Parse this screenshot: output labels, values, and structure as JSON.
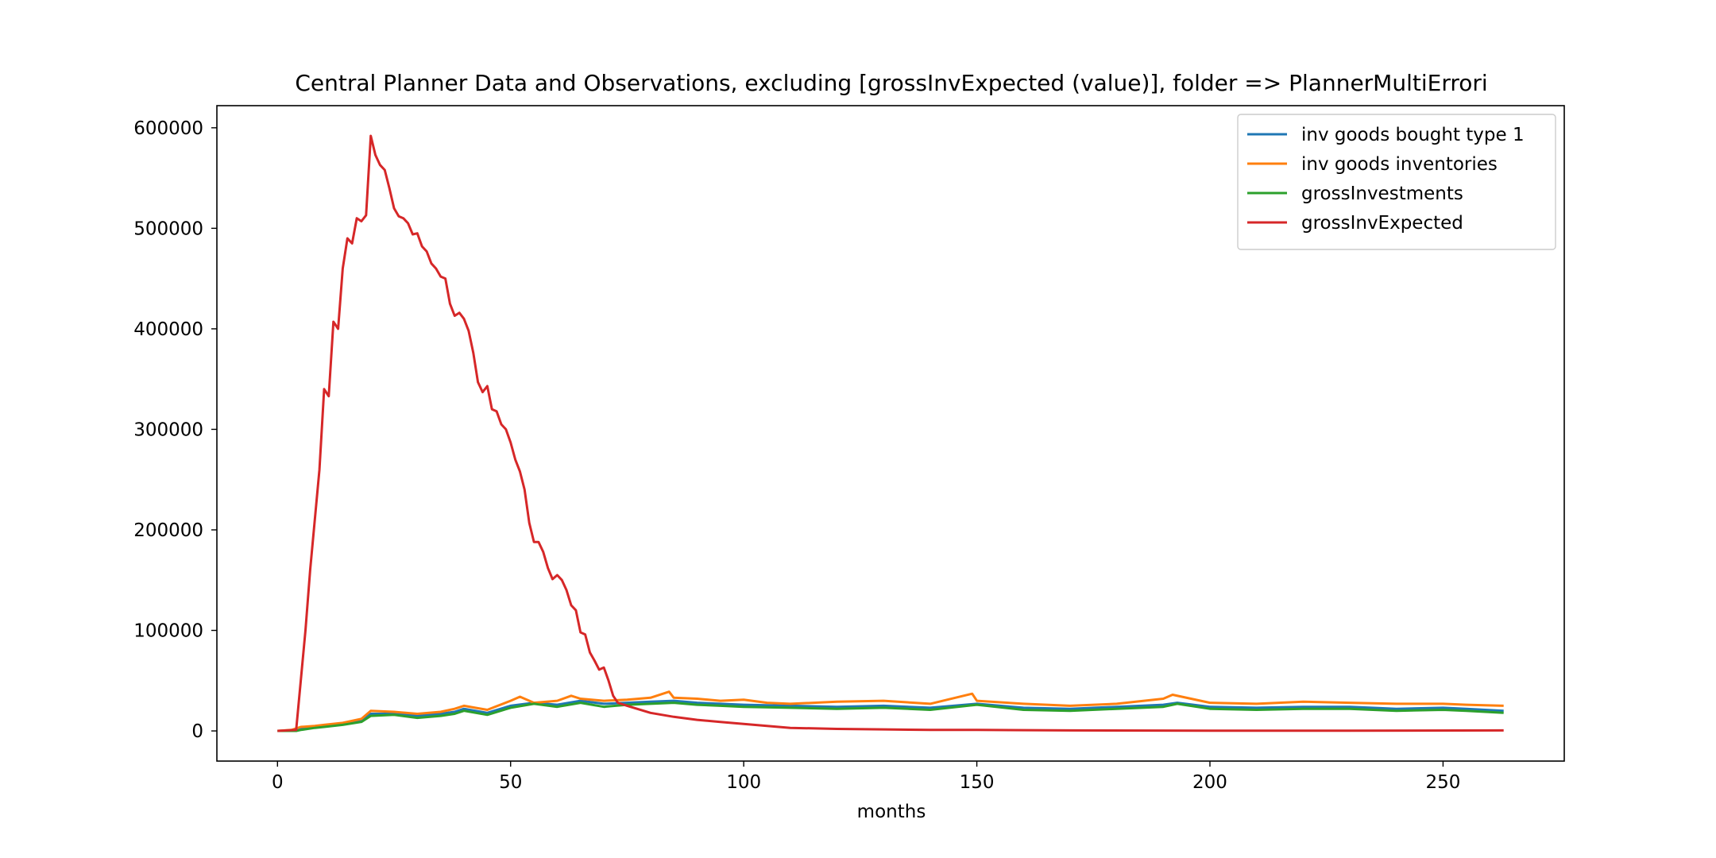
{
  "chart_data": {
    "type": "line",
    "title": "Central Planner Data and Observations, excluding [grossInvExpected (value)], folder => PlannerMultiErrori",
    "xlabel": "months",
    "ylabel": "",
    "xlim": [
      -13,
      276
    ],
    "ylim": [
      -30000,
      622000
    ],
    "xticks": [
      0,
      50,
      100,
      150,
      200,
      250
    ],
    "yticks": [
      0,
      100000,
      200000,
      300000,
      400000,
      500000,
      600000
    ],
    "legend_position": "top-right",
    "grid": false,
    "series": [
      {
        "name": "inv goods bought type 1",
        "color": "#1f77b4",
        "points": [
          [
            0,
            0
          ],
          [
            4,
            0
          ],
          [
            5,
            2000
          ],
          [
            8,
            4000
          ],
          [
            10,
            5000
          ],
          [
            14,
            7000
          ],
          [
            18,
            10000
          ],
          [
            20,
            17000
          ],
          [
            25,
            17000
          ],
          [
            30,
            15000
          ],
          [
            35,
            17000
          ],
          [
            38,
            19000
          ],
          [
            40,
            22000
          ],
          [
            45,
            18000
          ],
          [
            50,
            25000
          ],
          [
            55,
            28000
          ],
          [
            60,
            26000
          ],
          [
            65,
            30000
          ],
          [
            70,
            27000
          ],
          [
            75,
            28000
          ],
          [
            80,
            29000
          ],
          [
            85,
            30000
          ],
          [
            90,
            28000
          ],
          [
            95,
            27000
          ],
          [
            100,
            26000
          ],
          [
            110,
            25000
          ],
          [
            120,
            24000
          ],
          [
            130,
            25000
          ],
          [
            140,
            23000
          ],
          [
            150,
            27000
          ],
          [
            160,
            23000
          ],
          [
            170,
            22000
          ],
          [
            180,
            24000
          ],
          [
            190,
            26000
          ],
          [
            193,
            28000
          ],
          [
            200,
            24000
          ],
          [
            210,
            23000
          ],
          [
            220,
            24000
          ],
          [
            230,
            24000
          ],
          [
            240,
            22000
          ],
          [
            250,
            23000
          ],
          [
            255,
            22000
          ],
          [
            263,
            20000
          ]
        ]
      },
      {
        "name": "inv goods inventories",
        "color": "#ff7f0e",
        "points": [
          [
            0,
            0
          ],
          [
            3,
            1000
          ],
          [
            5,
            4000
          ],
          [
            8,
            5000
          ],
          [
            10,
            6000
          ],
          [
            14,
            8000
          ],
          [
            18,
            12000
          ],
          [
            20,
            20000
          ],
          [
            25,
            19000
          ],
          [
            30,
            17000
          ],
          [
            35,
            19000
          ],
          [
            38,
            22000
          ],
          [
            40,
            25000
          ],
          [
            45,
            21000
          ],
          [
            50,
            30000
          ],
          [
            52,
            34000
          ],
          [
            55,
            28000
          ],
          [
            60,
            30000
          ],
          [
            63,
            35000
          ],
          [
            65,
            32000
          ],
          [
            70,
            30000
          ],
          [
            75,
            31000
          ],
          [
            80,
            33000
          ],
          [
            84,
            39000
          ],
          [
            85,
            33000
          ],
          [
            90,
            32000
          ],
          [
            95,
            30000
          ],
          [
            100,
            31000
          ],
          [
            105,
            28000
          ],
          [
            110,
            27000
          ],
          [
            120,
            29000
          ],
          [
            130,
            30000
          ],
          [
            140,
            27000
          ],
          [
            149,
            37000
          ],
          [
            150,
            30000
          ],
          [
            160,
            27000
          ],
          [
            170,
            25000
          ],
          [
            180,
            27000
          ],
          [
            190,
            32000
          ],
          [
            192,
            36000
          ],
          [
            200,
            28000
          ],
          [
            210,
            27000
          ],
          [
            220,
            29000
          ],
          [
            230,
            28000
          ],
          [
            240,
            27000
          ],
          [
            250,
            27000
          ],
          [
            255,
            26000
          ],
          [
            263,
            25000
          ]
        ]
      },
      {
        "name": "grossInvestments",
        "color": "#2ca02c",
        "points": [
          [
            0,
            0
          ],
          [
            4,
            0
          ],
          [
            5,
            1000
          ],
          [
            8,
            3000
          ],
          [
            10,
            4000
          ],
          [
            14,
            6000
          ],
          [
            18,
            9000
          ],
          [
            20,
            15000
          ],
          [
            25,
            16000
          ],
          [
            30,
            13000
          ],
          [
            35,
            15000
          ],
          [
            38,
            17000
          ],
          [
            40,
            20000
          ],
          [
            45,
            16000
          ],
          [
            50,
            23000
          ],
          [
            55,
            27000
          ],
          [
            60,
            24000
          ],
          [
            65,
            28000
          ],
          [
            70,
            24000
          ],
          [
            75,
            26000
          ],
          [
            80,
            27000
          ],
          [
            85,
            28000
          ],
          [
            90,
            26000
          ],
          [
            95,
            25000
          ],
          [
            100,
            24000
          ],
          [
            110,
            23000
          ],
          [
            120,
            22000
          ],
          [
            130,
            23000
          ],
          [
            140,
            21000
          ],
          [
            150,
            26000
          ],
          [
            160,
            21000
          ],
          [
            170,
            20000
          ],
          [
            180,
            22000
          ],
          [
            190,
            24000
          ],
          [
            193,
            27000
          ],
          [
            200,
            22000
          ],
          [
            210,
            21000
          ],
          [
            220,
            22000
          ],
          [
            230,
            22000
          ],
          [
            240,
            20000
          ],
          [
            250,
            21000
          ],
          [
            255,
            20000
          ],
          [
            263,
            18000
          ]
        ]
      },
      {
        "name": "grossInvExpected",
        "color": "#d62728",
        "points": [
          [
            0,
            0
          ],
          [
            4,
            1000
          ],
          [
            5,
            50000
          ],
          [
            6,
            100000
          ],
          [
            7,
            160000
          ],
          [
            9,
            260000
          ],
          [
            10,
            340000
          ],
          [
            11,
            333000
          ],
          [
            12,
            407000
          ],
          [
            13,
            400000
          ],
          [
            14,
            460000
          ],
          [
            15,
            490000
          ],
          [
            16,
            485000
          ],
          [
            17,
            510000
          ],
          [
            18,
            507000
          ],
          [
            19,
            513000
          ],
          [
            20,
            592000
          ],
          [
            21,
            573000
          ],
          [
            22,
            563000
          ],
          [
            23,
            558000
          ],
          [
            24,
            540000
          ],
          [
            25,
            520000
          ],
          [
            26,
            512000
          ],
          [
            27,
            510000
          ],
          [
            28,
            505000
          ],
          [
            29,
            494000
          ],
          [
            30,
            495000
          ],
          [
            31,
            482000
          ],
          [
            32,
            477000
          ],
          [
            33,
            465000
          ],
          [
            34,
            460000
          ],
          [
            35,
            452000
          ],
          [
            36,
            450000
          ],
          [
            37,
            425000
          ],
          [
            38,
            413000
          ],
          [
            39,
            416000
          ],
          [
            40,
            410000
          ],
          [
            41,
            398000
          ],
          [
            42,
            376000
          ],
          [
            43,
            347000
          ],
          [
            44,
            337000
          ],
          [
            45,
            343000
          ],
          [
            46,
            320000
          ],
          [
            47,
            318000
          ],
          [
            48,
            305000
          ],
          [
            49,
            300000
          ],
          [
            50,
            287000
          ],
          [
            51,
            270000
          ],
          [
            52,
            258000
          ],
          [
            53,
            240000
          ],
          [
            54,
            207000
          ],
          [
            55,
            188000
          ],
          [
            56,
            188000
          ],
          [
            57,
            178000
          ],
          [
            58,
            162000
          ],
          [
            59,
            151000
          ],
          [
            60,
            155000
          ],
          [
            61,
            150000
          ],
          [
            62,
            140000
          ],
          [
            63,
            125000
          ],
          [
            64,
            120000
          ],
          [
            65,
            98000
          ],
          [
            66,
            96000
          ],
          [
            67,
            78000
          ],
          [
            68,
            70000
          ],
          [
            69,
            61000
          ],
          [
            70,
            63000
          ],
          [
            71,
            50000
          ],
          [
            72,
            35000
          ],
          [
            73,
            28000
          ],
          [
            75,
            25000
          ],
          [
            80,
            18000
          ],
          [
            85,
            14000
          ],
          [
            90,
            11000
          ],
          [
            95,
            9000
          ],
          [
            100,
            7000
          ],
          [
            105,
            5000
          ],
          [
            110,
            3000
          ],
          [
            120,
            2000
          ],
          [
            130,
            1500
          ],
          [
            140,
            1000
          ],
          [
            150,
            1000
          ],
          [
            170,
            500
          ],
          [
            200,
            300
          ],
          [
            230,
            200
          ],
          [
            263,
            500
          ]
        ]
      }
    ]
  }
}
